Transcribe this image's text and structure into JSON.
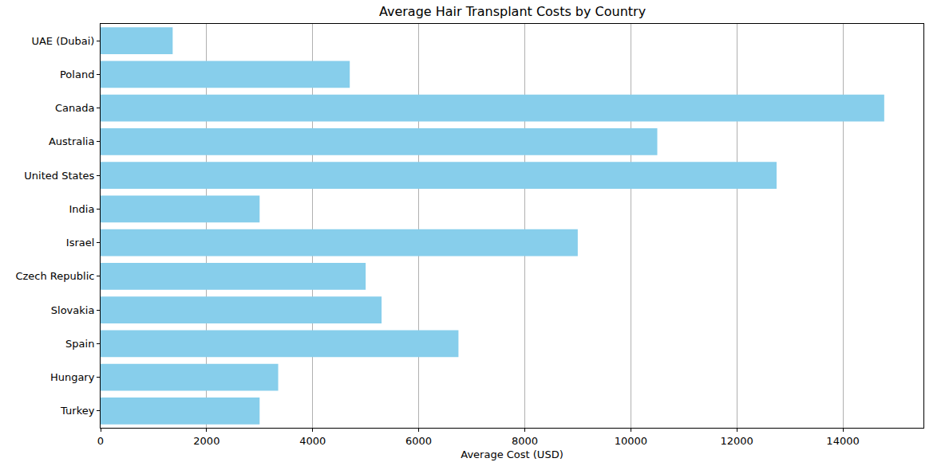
{
  "chart_data": {
    "type": "bar",
    "orientation": "horizontal",
    "title": "Average Hair Transplant Costs by Country",
    "x_label": "Average Cost (USD)",
    "categories": [
      "Turkey",
      "Hungary",
      "Spain",
      "Slovakia",
      "Czech Republic",
      "Israel",
      "India",
      "United States",
      "Australia",
      "Canada",
      "Poland",
      "UAE (Dubai)"
    ],
    "values": [
      3000,
      3350,
      6750,
      5300,
      5000,
      9000,
      3000,
      12750,
      10500,
      14780,
      4700,
      1360
    ],
    "color": "#87ceeb",
    "xlim": [
      0,
      15520
    ],
    "xticks": [
      0,
      2000,
      4000,
      6000,
      8000,
      10000,
      12000,
      14000
    ],
    "grid": true
  }
}
